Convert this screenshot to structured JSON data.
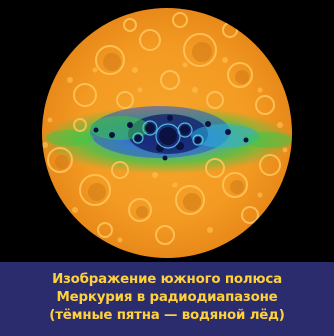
{
  "image": {
    "subject": "",
    "colors": {
      "background": "#000000",
      "surface_bright": "#fdb13c",
      "surface_main": "#f39a22",
      "surface_dark": "#c9721a",
      "ice_green": "#2ec24a",
      "ice_cyan": "#1fb6d6",
      "ice_blue": "#2340c8",
      "ice_dark": "#0b1240"
    }
  },
  "caption": {
    "lines": [
      "Изображение южного полюса",
      "Меркурия в радиодиапазоне",
      "(тёмные пятна — водяной лёд)"
    ],
    "text_color": "#ffd23a",
    "panel_color": "#2b2c6e"
  }
}
